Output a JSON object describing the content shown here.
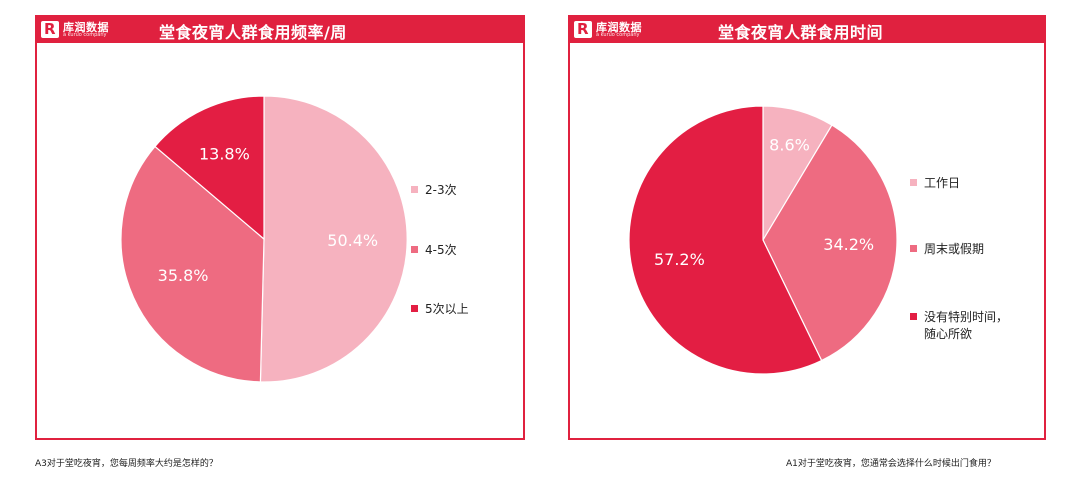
{
  "brand": {
    "logo_text": "库润数据",
    "logo_sub": "a kuruo company",
    "logo_mark": "R"
  },
  "colors": {
    "frame": "#e0213f",
    "light": "#f6b2bf",
    "medium": "#ee6b81",
    "dark": "#e31e43"
  },
  "captions": {
    "left": "A3对于堂吃夜宵，您每周频率大约是怎样的？",
    "right": "A1对于堂吃夜宵，您通常会选择什么时候出门食用？"
  },
  "chart_data": [
    {
      "type": "pie",
      "title": "堂食夜宵人群食用频率/周",
      "categories": [
        "2-3次",
        "4-5次",
        "5次以上"
      ],
      "values": [
        50.4,
        35.8,
        13.8
      ],
      "value_labels": [
        "50.4%",
        "35.8%",
        "13.8%"
      ],
      "colors": [
        "#f6b2bf",
        "#ee6b81",
        "#e31e43"
      ],
      "legend": "right"
    },
    {
      "type": "pie",
      "title": "堂食夜宵人群食用时间",
      "categories": [
        "工作日",
        "周末或假期",
        "没有特别时间，随心所欲"
      ],
      "legend_lines": [
        [
          "工作日"
        ],
        [
          "周末或假期"
        ],
        [
          "没有特别时间，",
          "随心所欲"
        ]
      ],
      "values": [
        8.6,
        34.2,
        57.2
      ],
      "value_labels": [
        "8.6%",
        "34.2%",
        "57.2%"
      ],
      "colors": [
        "#f6b2bf",
        "#ee6b81",
        "#e31e43"
      ],
      "legend": "right"
    }
  ]
}
